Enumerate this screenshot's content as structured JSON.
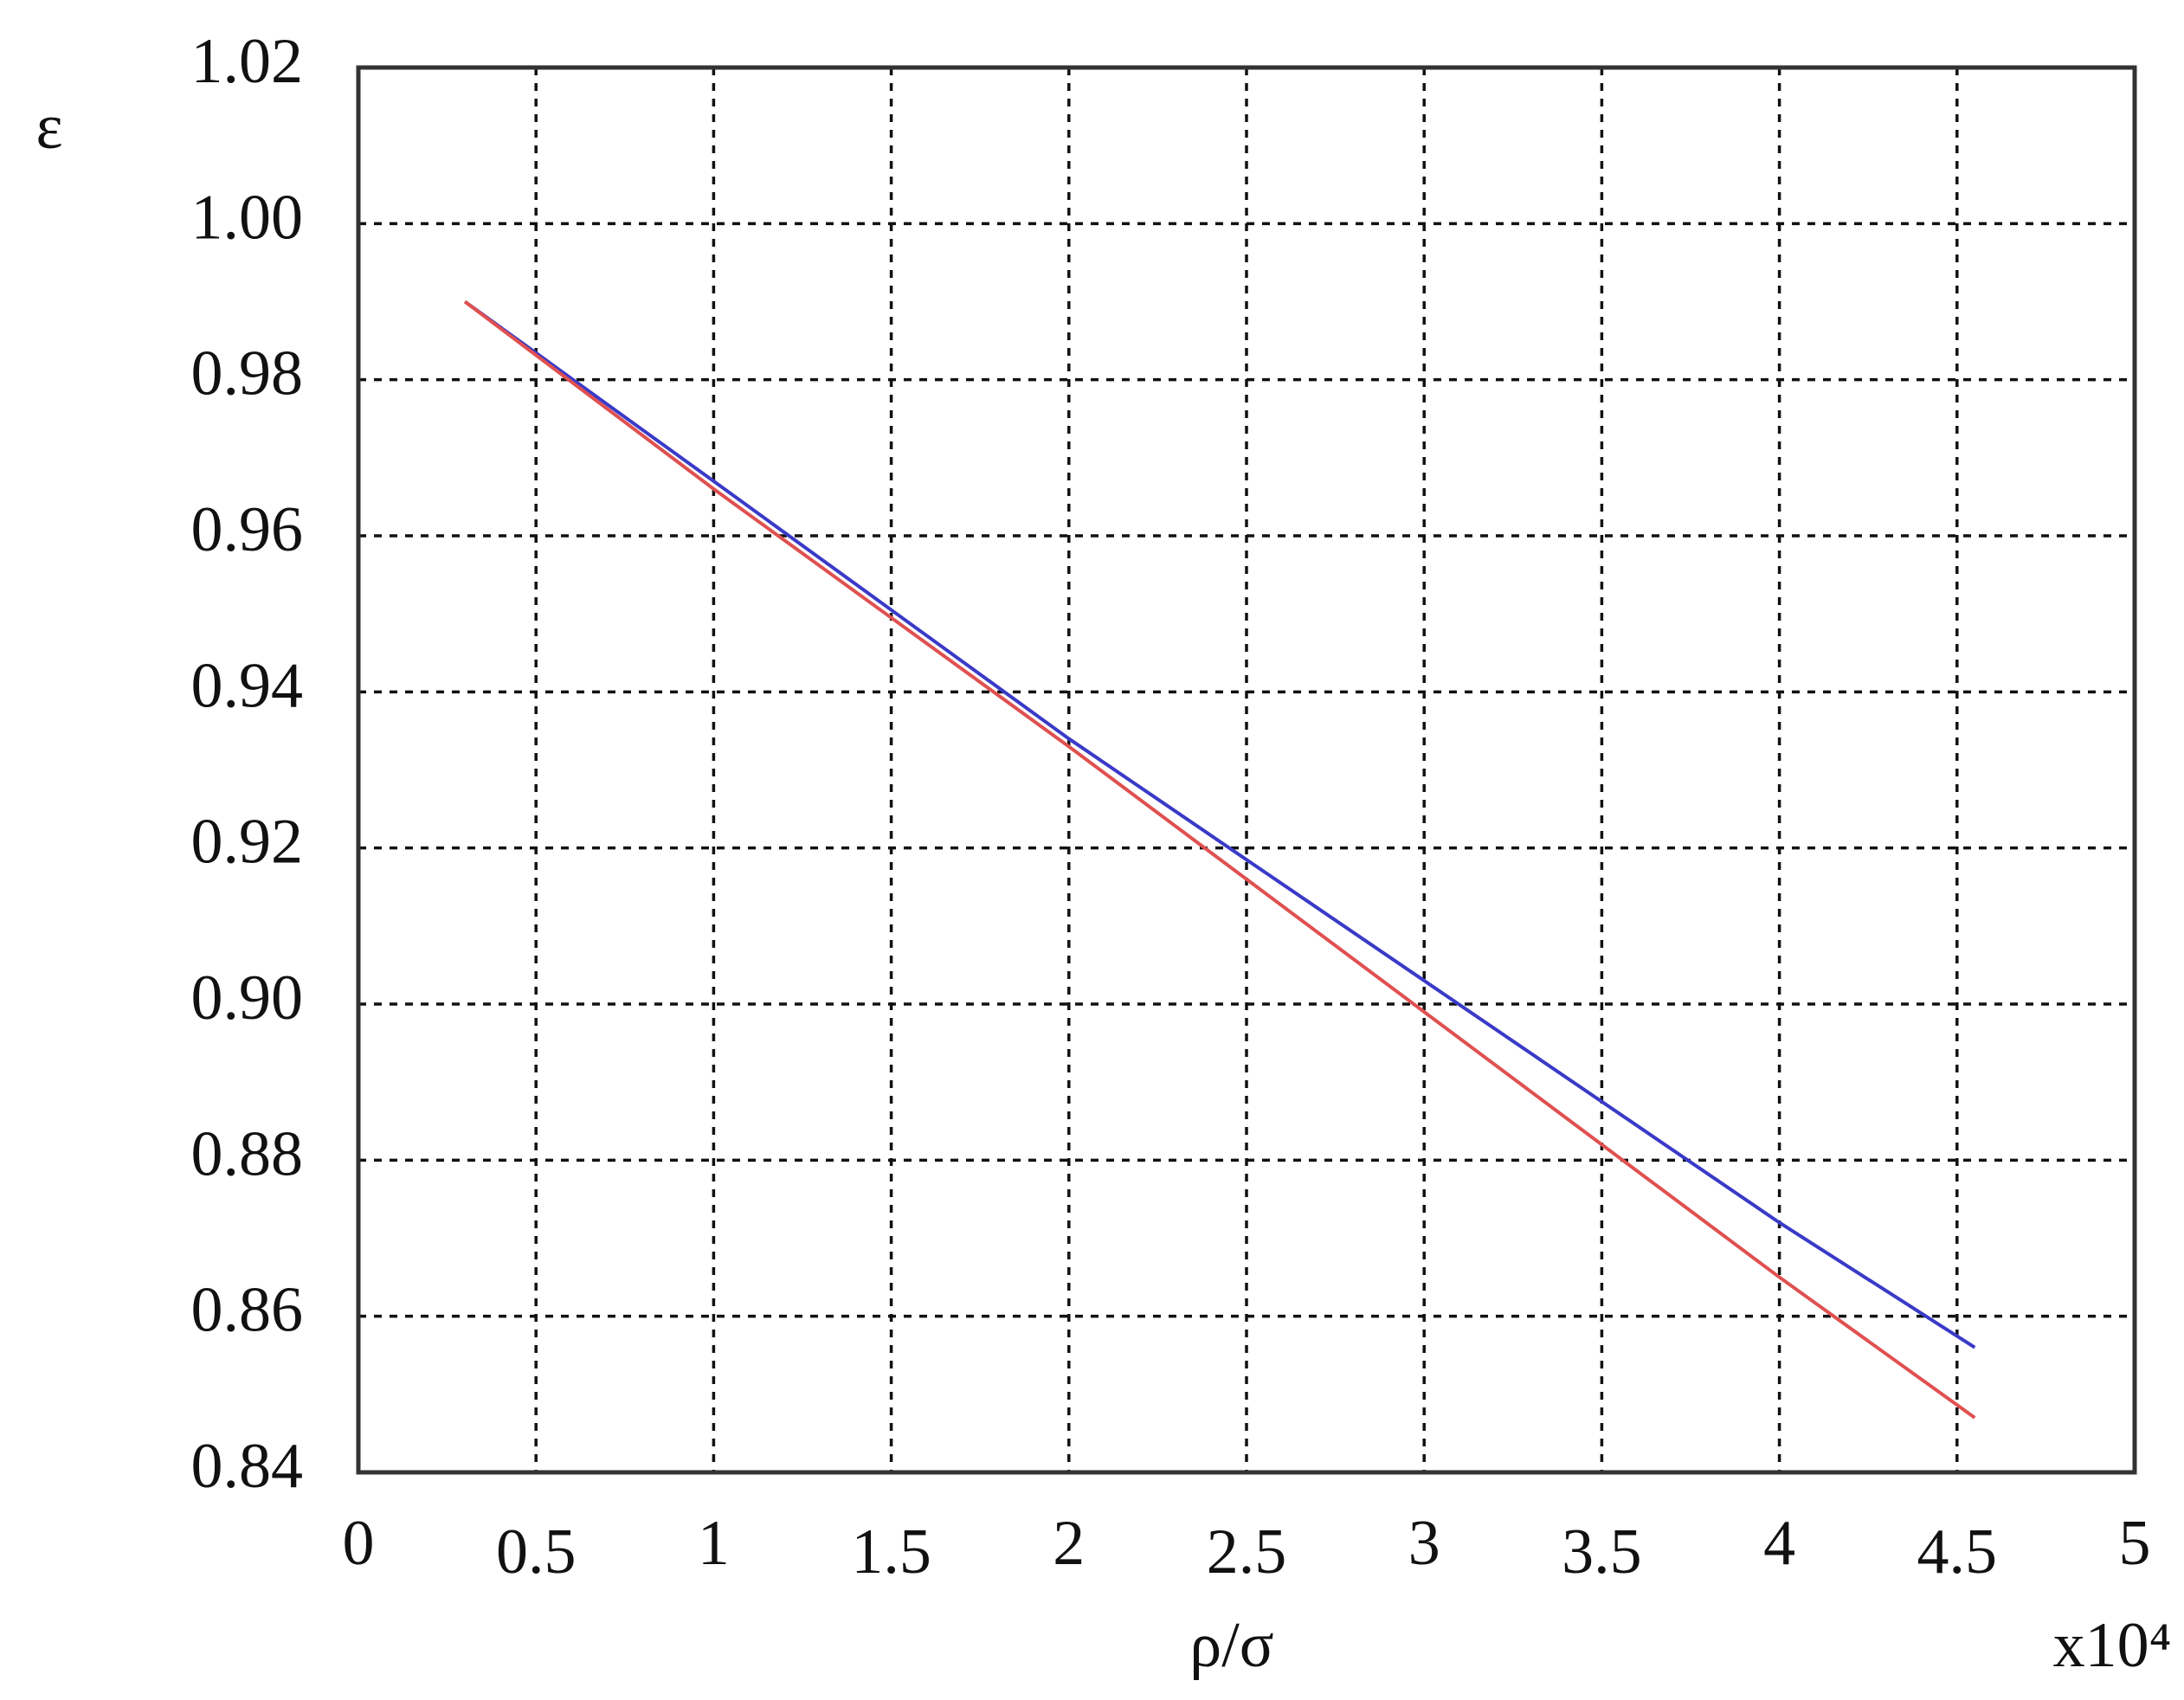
{
  "chart_data": {
    "type": "line",
    "y_label": "ε",
    "x_label": "ρ/σ",
    "x_multiplier": "x10⁴",
    "x": [
      0.3,
      1.0,
      2.0,
      3.0,
      4.0,
      4.55
    ],
    "series": [
      {
        "color": "#3a3ac8",
        "values": [
          0.99,
          0.967,
          0.934,
          0.903,
          0.872,
          0.856
        ]
      },
      {
        "color": "#e05050",
        "values": [
          0.99,
          0.966,
          0.933,
          0.899,
          0.865,
          0.847
        ]
      }
    ],
    "xlim": [
      0,
      5
    ],
    "xticks": [
      0,
      0.5,
      1,
      1.5,
      2,
      2.5,
      3,
      3.5,
      4,
      4.5,
      5
    ],
    "ylim": [
      0.84,
      1.02
    ],
    "yticks": [
      0.84,
      0.86,
      0.88,
      {
        "value": 0.9,
        "label": "0.90"
      },
      0.92,
      0.94,
      0.96,
      0.98,
      {
        "value": 1,
        "label": "1.00"
      },
      1.02
    ],
    "grid": true
  }
}
